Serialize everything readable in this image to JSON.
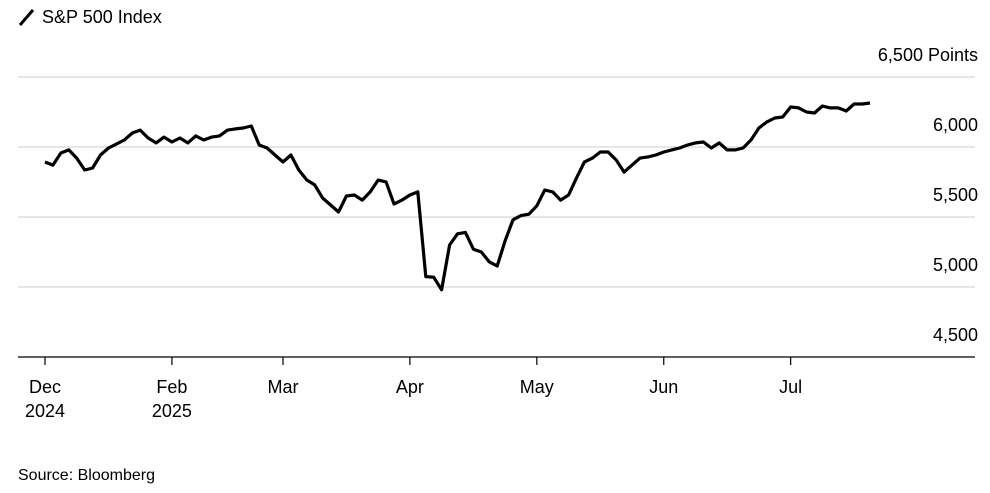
{
  "chart_data": {
    "type": "line",
    "title": "S&P 500 Index",
    "source": "Source: Bloomberg",
    "categories": [
      "Dec\n2024",
      null,
      null,
      null,
      null,
      null,
      null,
      null,
      null,
      null,
      null,
      null,
      null,
      null,
      null,
      null,
      "Feb\n2025",
      null,
      null,
      null,
      null,
      null,
      null,
      null,
      null,
      null,
      null,
      null,
      null,
      null,
      "Mar",
      null,
      null,
      null,
      null,
      null,
      null,
      null,
      null,
      null,
      null,
      null,
      null,
      null,
      null,
      null,
      "Apr",
      null,
      null,
      null,
      null,
      null,
      null,
      null,
      null,
      null,
      null,
      null,
      null,
      null,
      null,
      null,
      "May",
      null,
      null,
      null,
      null,
      null,
      null,
      null,
      null,
      null,
      null,
      null,
      null,
      null,
      null,
      null,
      "Jun",
      null,
      null,
      null,
      null,
      null,
      null,
      null,
      null,
      null,
      null,
      null,
      null,
      null,
      null,
      null,
      "Jul",
      null,
      null,
      null,
      null,
      null,
      null,
      null,
      null,
      null,
      null
    ],
    "series": [
      {
        "name": "S&P 500 Index",
        "color": "#000000",
        "values": [
          5893,
          5871,
          5957,
          5979,
          5921,
          5836,
          5850,
          5943,
          5993,
          6021,
          6050,
          6100,
          6121,
          6064,
          6029,
          6071,
          6036,
          6064,
          6029,
          6079,
          6050,
          6071,
          6079,
          6121,
          6129,
          6136,
          6150,
          6014,
          5993,
          5943,
          5893,
          5943,
          5836,
          5764,
          5729,
          5636,
          5586,
          5536,
          5650,
          5657,
          5621,
          5679,
          5764,
          5750,
          5593,
          5621,
          5657,
          5680,
          5074,
          5070,
          4980,
          5300,
          5380,
          5390,
          5270,
          5250,
          5180,
          5150,
          5330,
          5480,
          5510,
          5520,
          5580,
          5693,
          5679,
          5621,
          5657,
          5779,
          5893,
          5921,
          5964,
          5964,
          5907,
          5821,
          5871,
          5921,
          5929,
          5943,
          5964,
          5979,
          5993,
          6014,
          6029,
          6036,
          5993,
          6029,
          5979,
          5979,
          5993,
          6050,
          6136,
          6179,
          6207,
          6214,
          6286,
          6279,
          6250,
          6243,
          6293,
          6279,
          6279,
          6257,
          6307,
          6307,
          6314
        ]
      }
    ],
    "ylim": [
      4500,
      6500
    ],
    "yticks": [
      {
        "value": 4500,
        "label": "4,500"
      },
      {
        "value": 5000,
        "label": "5,000"
      },
      {
        "value": 5500,
        "label": "5,500"
      },
      {
        "value": 6000,
        "label": "6,000"
      },
      {
        "value": 6500,
        "label": "6,500 Points"
      }
    ],
    "grid": true
  }
}
